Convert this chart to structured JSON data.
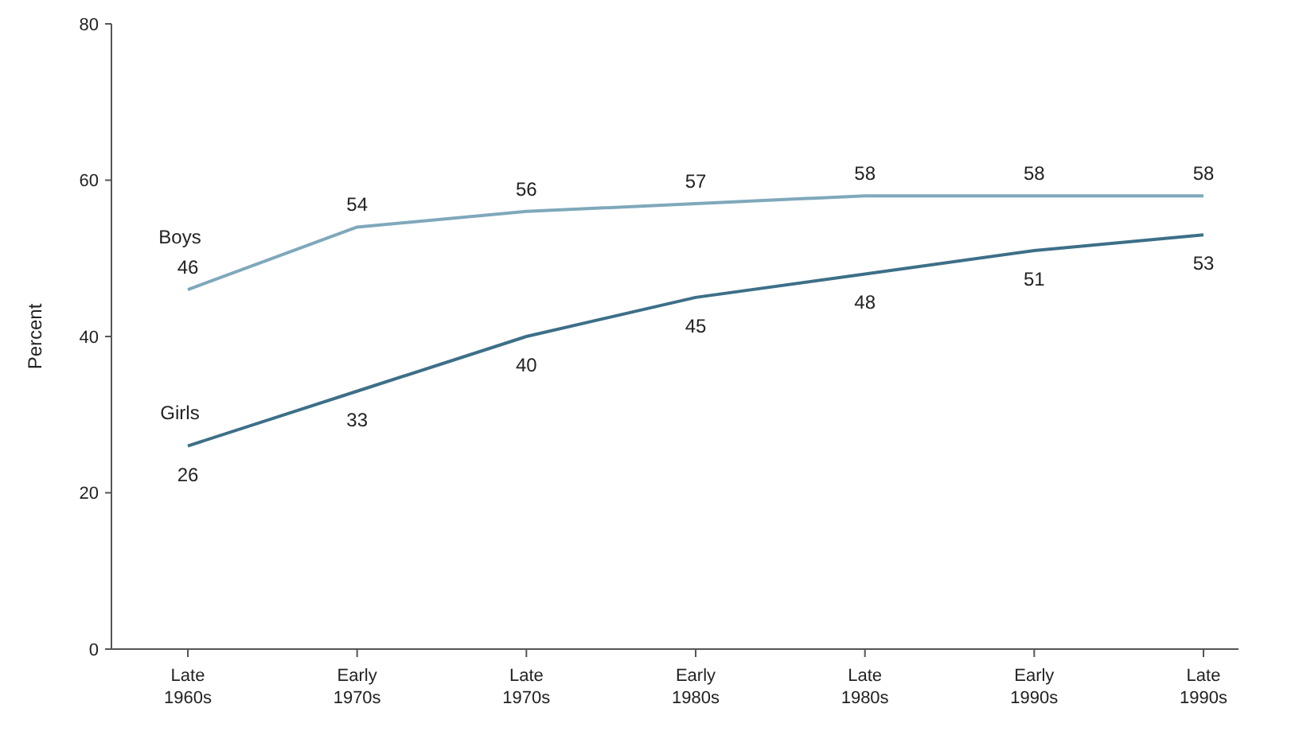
{
  "chart_data": {
    "type": "line",
    "ylabel": "Percent",
    "categories": [
      "Late\n1960s",
      "Early\n1970s",
      "Late\n1970s",
      "Early\n1980s",
      "Late\n1980s",
      "Early\n1990s",
      "Late\n1990s"
    ],
    "series": [
      {
        "name": "Boys",
        "color": "#7fa8bb",
        "values": [
          46,
          54,
          56,
          57,
          58,
          58,
          58
        ]
      },
      {
        "name": "Girls",
        "color": "#3d6f88",
        "values": [
          26,
          33,
          40,
          45,
          48,
          51,
          53
        ]
      }
    ],
    "ylim": [
      0,
      80
    ],
    "yticks": [
      0,
      20,
      40,
      60,
      80
    ],
    "data_labels": true,
    "grid": false,
    "marker": "none",
    "line_style": "solid"
  }
}
